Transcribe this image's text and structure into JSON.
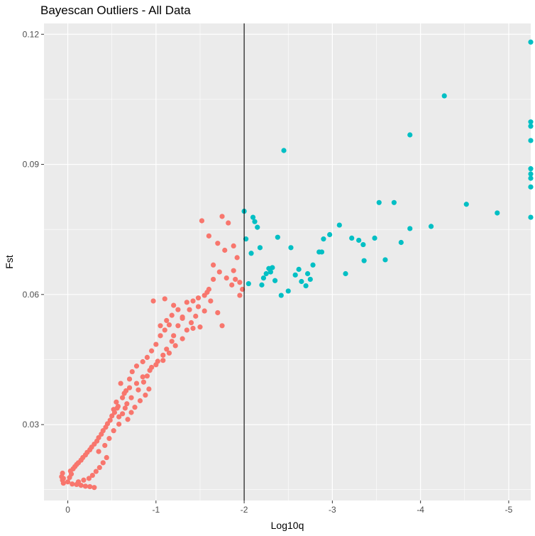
{
  "chart_data": {
    "type": "scatter",
    "title": "Bayescan Outliers - All Data",
    "xlabel": "Log10q",
    "ylabel": "Fst",
    "x_reversed": true,
    "xlim": [
      0.27,
      -5.25
    ],
    "ylim": [
      0.0125,
      0.1225
    ],
    "x_ticks": [
      0,
      -1,
      -2,
      -3,
      -4,
      -5
    ],
    "x_tick_labels": [
      "0",
      "-1",
      "-2",
      "-3",
      "-4",
      "-5"
    ],
    "y_ticks": [
      0.03,
      0.06,
      0.09,
      0.12
    ],
    "y_tick_labels": [
      "0.03",
      "0.06",
      "0.09",
      "0.12"
    ],
    "vline": -2,
    "grid": true,
    "legend": "none",
    "colors": {
      "panel": "#ebebeb",
      "grid": "#ffffff",
      "vline": "#000000",
      "neutral": "#f8766d",
      "outlier": "#00bfc4"
    },
    "series": [
      {
        "color": "#f8766d",
        "points": [
          [
            0.05,
            0.0165
          ],
          [
            0.06,
            0.0172
          ],
          [
            0.07,
            0.018
          ],
          [
            0.06,
            0.0188
          ],
          [
            0.05,
            0.0176
          ],
          [
            0.0,
            0.0168
          ],
          [
            -0.02,
            0.0178
          ],
          [
            -0.04,
            0.0186
          ],
          [
            -0.03,
            0.0193
          ],
          [
            -0.06,
            0.0198
          ],
          [
            -0.08,
            0.0203
          ],
          [
            -0.1,
            0.0208
          ],
          [
            -0.12,
            0.0212
          ],
          [
            -0.15,
            0.0218
          ],
          [
            -0.17,
            0.0224
          ],
          [
            -0.2,
            0.023
          ],
          [
            -0.22,
            0.0236
          ],
          [
            -0.25,
            0.0242
          ],
          [
            -0.27,
            0.0248
          ],
          [
            -0.3,
            0.0255
          ],
          [
            -0.33,
            0.0262
          ],
          [
            -0.35,
            0.027
          ],
          [
            -0.38,
            0.0278
          ],
          [
            -0.4,
            0.0286
          ],
          [
            -0.43,
            0.0294
          ],
          [
            -0.45,
            0.0302
          ],
          [
            -0.48,
            0.031
          ],
          [
            -0.5,
            0.032
          ],
          [
            -0.53,
            0.0328
          ],
          [
            -0.56,
            0.0338
          ],
          [
            -0.1,
            0.0162
          ],
          [
            -0.15,
            0.016
          ],
          [
            -0.2,
            0.0158
          ],
          [
            -0.25,
            0.0157
          ],
          [
            -0.3,
            0.0155
          ],
          [
            -0.05,
            0.0163
          ],
          [
            -0.12,
            0.0168
          ],
          [
            -0.18,
            0.0172
          ],
          [
            -0.24,
            0.0176
          ],
          [
            -0.28,
            0.0183
          ],
          [
            -0.32,
            0.0192
          ],
          [
            -0.36,
            0.0201
          ],
          [
            -0.4,
            0.0212
          ],
          [
            -0.44,
            0.0224
          ],
          [
            -0.35,
            0.0238
          ],
          [
            -0.42,
            0.0252
          ],
          [
            -0.47,
            0.0268
          ],
          [
            -0.52,
            0.0286
          ],
          [
            -0.58,
            0.0301
          ],
          [
            -0.55,
            0.0352
          ],
          [
            -0.62,
            0.0362
          ],
          [
            -0.66,
            0.0378
          ],
          [
            -0.6,
            0.0395
          ],
          [
            -0.7,
            0.0405
          ],
          [
            -0.73,
            0.0422
          ],
          [
            -0.78,
            0.0435
          ],
          [
            -0.85,
            0.0445
          ],
          [
            -0.9,
            0.0455
          ],
          [
            -0.95,
            0.047
          ],
          [
            -1.0,
            0.0485
          ],
          [
            -0.67,
            0.0348
          ],
          [
            -0.72,
            0.0362
          ],
          [
            -0.8,
            0.038
          ],
          [
            -0.86,
            0.0398
          ],
          [
            -0.9,
            0.0412
          ],
          [
            -0.95,
            0.0432
          ],
          [
            -1.02,
            0.0446
          ],
          [
            -1.08,
            0.046
          ],
          [
            -1.12,
            0.0474
          ],
          [
            -1.18,
            0.0492
          ],
          [
            -0.52,
            0.0335
          ],
          [
            -0.58,
            0.0318
          ],
          [
            -0.62,
            0.0325
          ],
          [
            -0.65,
            0.0338
          ],
          [
            -0.68,
            0.0312
          ],
          [
            -0.72,
            0.0328
          ],
          [
            -0.76,
            0.034
          ],
          [
            -0.82,
            0.0355
          ],
          [
            -0.88,
            0.0368
          ],
          [
            -0.92,
            0.0382
          ],
          [
            -1.05,
            0.0505
          ],
          [
            -1.1,
            0.0518
          ],
          [
            -1.15,
            0.053
          ],
          [
            -1.2,
            0.0505
          ],
          [
            -1.25,
            0.0528
          ],
          [
            -1.3,
            0.0545
          ],
          [
            -1.35,
            0.0518
          ],
          [
            -1.4,
            0.0535
          ],
          [
            -1.45,
            0.055
          ],
          [
            -1.5,
            0.0525
          ],
          [
            -0.97,
            0.0585
          ],
          [
            -1.1,
            0.059
          ],
          [
            -1.2,
            0.0575
          ],
          [
            -1.3,
            0.0548
          ],
          [
            -1.38,
            0.0565
          ],
          [
            -1.42,
            0.0585
          ],
          [
            -1.48,
            0.0572
          ],
          [
            -1.55,
            0.0598
          ],
          [
            -1.6,
            0.0612
          ],
          [
            -1.65,
            0.0635
          ],
          [
            -1.52,
            0.077
          ],
          [
            -1.75,
            0.078
          ],
          [
            -1.82,
            0.0765
          ],
          [
            -1.6,
            0.0735
          ],
          [
            -1.7,
            0.0718
          ],
          [
            -1.78,
            0.0702
          ],
          [
            -1.88,
            0.0712
          ],
          [
            -1.92,
            0.0685
          ],
          [
            -1.65,
            0.0668
          ],
          [
            -1.72,
            0.0652
          ],
          [
            -1.8,
            0.0638
          ],
          [
            -1.86,
            0.0622
          ],
          [
            -1.95,
            0.0598
          ],
          [
            -1.9,
            0.0635
          ],
          [
            -1.62,
            0.0585
          ],
          [
            -1.7,
            0.0558
          ],
          [
            -1.75,
            0.0528
          ],
          [
            -1.55,
            0.0562
          ],
          [
            -1.42,
            0.0522
          ],
          [
            -1.3,
            0.0498
          ],
          [
            -1.22,
            0.0482
          ],
          [
            -1.15,
            0.0465
          ],
          [
            -1.08,
            0.0448
          ],
          [
            -1.0,
            0.0438
          ],
          [
            -0.93,
            0.0425
          ],
          [
            -0.85,
            0.041
          ],
          [
            -0.78,
            0.0395
          ],
          [
            -0.7,
            0.0385
          ],
          [
            -0.64,
            0.0372
          ],
          [
            -0.57,
            0.0342
          ],
          [
            -1.88,
            0.0655
          ],
          [
            -1.95,
            0.0628
          ],
          [
            -1.98,
            0.0612
          ],
          [
            -1.58,
            0.0605
          ],
          [
            -1.48,
            0.0592
          ],
          [
            -1.35,
            0.0582
          ],
          [
            -1.25,
            0.0565
          ],
          [
            -1.18,
            0.0552
          ],
          [
            -1.12,
            0.054
          ],
          [
            -1.05,
            0.0528
          ]
        ]
      },
      {
        "color": "#00bfc4",
        "points": [
          [
            -2.0,
            0.0792
          ],
          [
            -2.1,
            0.0778
          ],
          [
            -2.12,
            0.0768
          ],
          [
            -2.15,
            0.0755
          ],
          [
            -2.02,
            0.0728
          ],
          [
            -2.08,
            0.0695
          ],
          [
            -2.38,
            0.0732
          ],
          [
            -2.53,
            0.0708
          ],
          [
            -2.45,
            0.0932
          ],
          [
            -3.08,
            0.076
          ],
          [
            -2.9,
            0.0728
          ],
          [
            -2.97,
            0.0738
          ],
          [
            -2.85,
            0.0698
          ],
          [
            -3.22,
            0.073
          ],
          [
            -3.3,
            0.0725
          ],
          [
            -3.35,
            0.0715
          ],
          [
            -3.48,
            0.073
          ],
          [
            -3.53,
            0.0812
          ],
          [
            -3.7,
            0.0812
          ],
          [
            -3.78,
            0.072
          ],
          [
            -3.88,
            0.0752
          ],
          [
            -3.88,
            0.0968
          ],
          [
            -4.12,
            0.0757
          ],
          [
            -4.27,
            0.1058
          ],
          [
            -4.52,
            0.0808
          ],
          [
            -4.87,
            0.0788
          ],
          [
            -5.25,
            0.1182
          ],
          [
            -5.25,
            0.0998
          ],
          [
            -5.25,
            0.0988
          ],
          [
            -5.25,
            0.0955
          ],
          [
            -5.25,
            0.089
          ],
          [
            -5.25,
            0.0878
          ],
          [
            -5.25,
            0.0868
          ],
          [
            -5.25,
            0.0848
          ],
          [
            -5.25,
            0.0778
          ],
          [
            -2.05,
            0.0625
          ],
          [
            -2.2,
            0.0622
          ],
          [
            -2.25,
            0.0648
          ],
          [
            -2.28,
            0.066
          ],
          [
            -2.22,
            0.0638
          ],
          [
            -2.3,
            0.0652
          ],
          [
            -2.32,
            0.0662
          ],
          [
            -2.35,
            0.0632
          ],
          [
            -2.42,
            0.0598
          ],
          [
            -2.5,
            0.0608
          ],
          [
            -2.58,
            0.0645
          ],
          [
            -2.62,
            0.0658
          ],
          [
            -2.65,
            0.063
          ],
          [
            -2.7,
            0.062
          ],
          [
            -2.72,
            0.0648
          ],
          [
            -2.75,
            0.0635
          ],
          [
            -2.78,
            0.0668
          ],
          [
            -2.88,
            0.0698
          ],
          [
            -3.15,
            0.0648
          ],
          [
            -3.36,
            0.0678
          ],
          [
            -3.6,
            0.068
          ],
          [
            -2.18,
            0.0708
          ]
        ]
      }
    ]
  }
}
